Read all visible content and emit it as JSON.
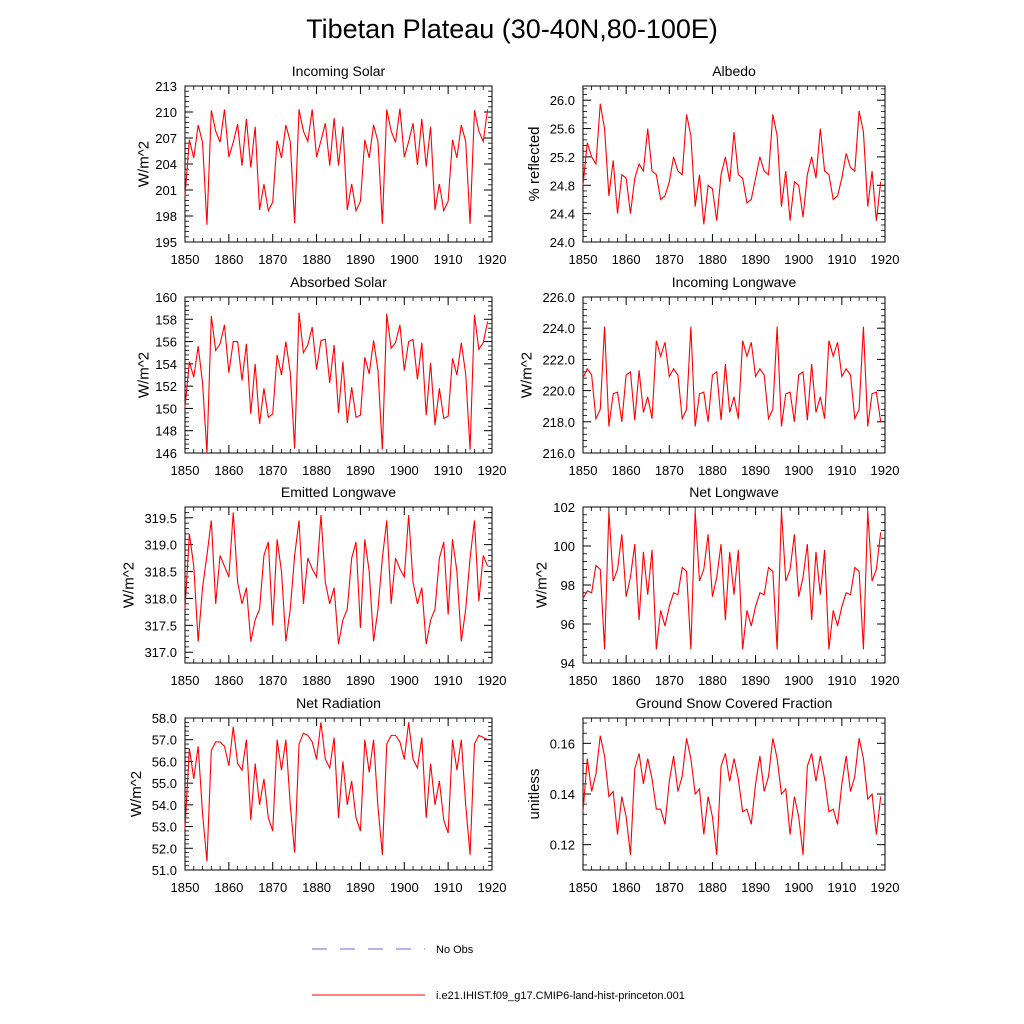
{
  "figure": {
    "title": "Tibetan Plateau (30-40N,80-100E)",
    "legend": [
      {
        "label": "No Obs",
        "color": "#6a6ad0",
        "style": "dashed"
      },
      {
        "label": "i.e21.IHIST.f09_g17.CMIP6-land-hist-princeton.001",
        "color": "#ff0000",
        "style": "solid"
      }
    ]
  },
  "chart_data": [
    {
      "type": "line",
      "title": "Incoming Solar",
      "ylabel": "W/m^2",
      "xlim": [
        1850,
        1920
      ],
      "ylim": [
        195,
        213
      ],
      "xticks": [
        "1850",
        "1860",
        "1870",
        "1880",
        "1890",
        "1900",
        "1910",
        "1920"
      ],
      "yticks": [
        "195",
        "198",
        "201",
        "204",
        "207",
        "210",
        "213"
      ],
      "color": "#ff0000",
      "x_start": 1850,
      "values": [
        200.3,
        206.8,
        204.7,
        208.5,
        206.5,
        197.0,
        210.2,
        207.8,
        206.5,
        210.3,
        204.8,
        206.5,
        208.6,
        203.8,
        209.2,
        203.6,
        208.3,
        198.7,
        201.7,
        198.6,
        199.6,
        206.7,
        204.7,
        208.5,
        206.6,
        197.2,
        210.3,
        207.8,
        206.6,
        210.3,
        204.8,
        206.7,
        208.7,
        203.8,
        209.3,
        203.8,
        208.3,
        198.7,
        201.7,
        198.6,
        199.7,
        206.8,
        204.7,
        208.5,
        206.6,
        197.1,
        210.3,
        207.8,
        206.5,
        210.4,
        204.8,
        206.6,
        208.7,
        203.9,
        209.2,
        203.7,
        208.3,
        198.7,
        201.7,
        198.6,
        199.7,
        206.8,
        204.7,
        208.5,
        206.6,
        197.1,
        210.2,
        207.8,
        206.6,
        210.3
      ]
    },
    {
      "type": "line",
      "title": "Albedo",
      "ylabel": "% reflected",
      "xlim": [
        1850,
        1920
      ],
      "ylim": [
        24.0,
        26.2
      ],
      "xticks": [
        "1850",
        "1860",
        "1870",
        "1880",
        "1890",
        "1900",
        "1910",
        "1920"
      ],
      "yticks": [
        "24.0",
        "24.4",
        "24.8",
        "25.2",
        "25.6",
        "26.0"
      ],
      "color": "#ff0000",
      "x_start": 1850,
      "values": [
        24.8,
        25.4,
        25.2,
        25.1,
        25.95,
        25.6,
        24.65,
        25.15,
        24.4,
        24.95,
        24.9,
        24.4,
        24.9,
        25.1,
        25.0,
        25.6,
        25.0,
        24.95,
        24.6,
        24.65,
        24.85,
        25.2,
        25.0,
        24.95,
        25.8,
        25.5,
        24.5,
        24.95,
        24.25,
        24.8,
        24.75,
        24.3,
        24.95,
        25.2,
        24.85,
        25.55,
        24.95,
        24.9,
        24.55,
        24.6,
        24.9,
        25.2,
        25.0,
        24.95,
        25.8,
        25.5,
        24.5,
        25.0,
        24.3,
        24.85,
        24.8,
        24.35,
        24.95,
        25.2,
        24.9,
        25.6,
        25.0,
        24.95,
        24.6,
        24.65,
        24.9,
        25.25,
        25.05,
        25.0,
        25.85,
        25.55,
        24.5,
        25.0,
        24.3,
        24.85
      ]
    },
    {
      "type": "line",
      "title": "Absorbed Solar",
      "ylabel": "W/m^2",
      "xlim": [
        1850,
        1920
      ],
      "ylim": [
        146,
        160
      ],
      "xticks": [
        "1850",
        "1860",
        "1870",
        "1880",
        "1890",
        "1900",
        "1910",
        "1920"
      ],
      "yticks": [
        "146",
        "148",
        "150",
        "152",
        "154",
        "156",
        "158",
        "160"
      ],
      "color": "#ff0000",
      "x_start": 1850,
      "values": [
        150.1,
        154.2,
        152.8,
        155.6,
        152.3,
        146.0,
        158.3,
        155.2,
        155.8,
        157.5,
        153.2,
        156.0,
        156.0,
        152.5,
        155.8,
        149.5,
        154.0,
        148.6,
        151.8,
        149.2,
        149.5,
        154.8,
        153.0,
        156.0,
        153.2,
        146.4,
        158.6,
        155.0,
        155.7,
        157.3,
        153.5,
        156.1,
        156.2,
        152.3,
        155.7,
        149.6,
        154.2,
        148.7,
        151.9,
        149.2,
        149.4,
        154.6,
        153.1,
        156.1,
        153.4,
        146.3,
        158.5,
        155.4,
        155.9,
        157.5,
        153.4,
        156.0,
        156.2,
        152.6,
        155.9,
        149.4,
        154.1,
        148.5,
        151.8,
        149.1,
        149.3,
        154.5,
        153.0,
        155.9,
        153.1,
        146.3,
        158.4,
        155.3,
        155.9,
        157.8
      ]
    },
    {
      "type": "line",
      "title": "Incoming Longwave",
      "ylabel": "W/m^2",
      "xlim": [
        1850,
        1920
      ],
      "ylim": [
        216.0,
        226.0
      ],
      "xticks": [
        "1850",
        "1860",
        "1870",
        "1880",
        "1890",
        "1900",
        "1910",
        "1920"
      ],
      "yticks": [
        "216.0",
        "218.0",
        "220.0",
        "222.0",
        "224.0",
        "226.0"
      ],
      "color": "#ff0000",
      "x_start": 1850,
      "values": [
        220.8,
        221.4,
        221.0,
        218.2,
        218.8,
        224.1,
        217.7,
        219.8,
        219.9,
        218.0,
        221.0,
        221.2,
        218.1,
        221.3,
        218.6,
        219.6,
        218.2,
        223.2,
        222.2,
        223.1,
        220.9,
        221.4,
        221.0,
        218.2,
        218.8,
        224.1,
        217.7,
        219.8,
        219.9,
        218.0,
        221.0,
        221.2,
        218.1,
        221.7,
        218.6,
        219.6,
        218.2,
        223.2,
        222.2,
        223.1,
        220.9,
        221.4,
        221.0,
        218.2,
        218.8,
        224.1,
        217.7,
        219.8,
        219.9,
        218.0,
        221.0,
        221.2,
        218.1,
        221.7,
        218.6,
        219.6,
        218.2,
        223.2,
        222.2,
        223.1,
        220.9,
        221.4,
        221.0,
        218.2,
        218.8,
        224.1,
        217.7,
        219.8,
        219.9,
        218.0
      ]
    },
    {
      "type": "line",
      "title": "Emitted Longwave",
      "ylabel": "W/m^2",
      "xlim": [
        1850,
        1920
      ],
      "ylim": [
        316.8,
        319.7
      ],
      "xticks": [
        "1850",
        "1860",
        "1870",
        "1880",
        "1890",
        "1900",
        "1910",
        "1920"
      ],
      "yticks": [
        "317.0",
        "317.5",
        "318.0",
        "318.5",
        "319.0",
        "319.5"
      ],
      "color": "#ff0000",
      "x_start": 1850,
      "values": [
        317.8,
        319.2,
        318.6,
        317.2,
        318.2,
        318.8,
        319.45,
        317.9,
        318.8,
        318.6,
        318.4,
        319.6,
        318.3,
        317.9,
        318.2,
        317.2,
        317.6,
        317.8,
        318.8,
        319.05,
        317.5,
        319.1,
        318.5,
        317.2,
        317.8,
        318.8,
        319.45,
        317.9,
        318.75,
        318.55,
        318.4,
        319.55,
        318.3,
        317.9,
        318.2,
        317.15,
        317.6,
        317.8,
        318.75,
        319.05,
        317.45,
        319.1,
        318.5,
        317.2,
        317.8,
        318.75,
        319.45,
        317.9,
        318.75,
        318.55,
        318.4,
        319.55,
        318.3,
        317.9,
        318.2,
        317.15,
        317.6,
        317.8,
        318.75,
        319.05,
        317.7,
        319.1,
        318.5,
        317.2,
        317.8,
        318.75,
        319.45,
        317.95,
        318.8,
        318.6
      ]
    },
    {
      "type": "line",
      "title": "Net Longwave",
      "ylabel": "W/m^2",
      "xlim": [
        1850,
        1920
      ],
      "ylim": [
        94,
        102
      ],
      "xticks": [
        "1850",
        "1860",
        "1870",
        "1880",
        "1890",
        "1900",
        "1910",
        "1920"
      ],
      "yticks": [
        "94",
        "96",
        "98",
        "100",
        "102"
      ],
      "color": "#ff0000",
      "x_start": 1850,
      "values": [
        97.3,
        97.7,
        97.6,
        99.0,
        98.8,
        94.7,
        101.8,
        98.2,
        98.8,
        100.6,
        97.4,
        98.4,
        100.1,
        96.2,
        99.7,
        97.5,
        99.8,
        94.7,
        96.7,
        95.9,
        96.9,
        97.6,
        97.5,
        98.9,
        98.7,
        94.7,
        101.8,
        98.2,
        98.8,
        100.6,
        97.4,
        98.4,
        100.1,
        96.2,
        99.7,
        97.5,
        99.8,
        94.7,
        96.7,
        95.9,
        96.9,
        97.6,
        97.5,
        98.9,
        98.7,
        94.7,
        101.8,
        98.2,
        98.8,
        100.6,
        97.4,
        98.4,
        100.1,
        96.2,
        99.7,
        97.5,
        99.8,
        94.7,
        96.7,
        95.9,
        96.9,
        97.6,
        97.5,
        98.9,
        98.7,
        94.7,
        101.8,
        98.2,
        98.8,
        100.7
      ]
    },
    {
      "type": "line",
      "title": "Net Radiation",
      "ylabel": "W/m^2",
      "xlim": [
        1850,
        1920
      ],
      "ylim": [
        51.0,
        58.0
      ],
      "xticks": [
        "1850",
        "1860",
        "1870",
        "1880",
        "1890",
        "1900",
        "1910",
        "1920"
      ],
      "yticks": [
        "51.0",
        "52.0",
        "53.0",
        "54.0",
        "55.0",
        "56.0",
        "57.0",
        "58.0"
      ],
      "color": "#ff0000",
      "x_start": 1850,
      "values": [
        52.9,
        56.6,
        55.2,
        56.7,
        53.6,
        51.4,
        56.5,
        56.9,
        56.9,
        56.7,
        55.8,
        57.6,
        55.9,
        55.6,
        57.0,
        53.3,
        55.9,
        54.0,
        55.2,
        53.4,
        52.8,
        57.0,
        55.6,
        57.0,
        54.0,
        51.8,
        56.8,
        57.3,
        57.2,
        56.9,
        56.1,
        57.8,
        56.1,
        55.7,
        57.1,
        53.4,
        56.0,
        54.0,
        55.1,
        53.4,
        52.8,
        57.0,
        55.5,
        57.0,
        53.9,
        51.7,
        56.8,
        57.2,
        57.2,
        56.9,
        56.1,
        57.8,
        56.1,
        55.7,
        57.1,
        53.4,
        55.9,
        54.0,
        55.1,
        53.3,
        52.7,
        57.0,
        55.6,
        57.0,
        54.0,
        51.7,
        56.8,
        57.2,
        57.1,
        57.0
      ]
    },
    {
      "type": "line",
      "title": "Ground Snow Covered Fraction",
      "ylabel": "unitless",
      "xlim": [
        1850,
        1920
      ],
      "ylim": [
        0.11,
        0.17
      ],
      "xticks": [
        "1850",
        "1860",
        "1870",
        "1880",
        "1890",
        "1900",
        "1910",
        "1920"
      ],
      "yticks": [
        "0.12",
        "0.14",
        "0.16"
      ],
      "color": "#ff0000",
      "x_start": 1850,
      "values": [
        0.133,
        0.154,
        0.141,
        0.148,
        0.163,
        0.155,
        0.139,
        0.141,
        0.124,
        0.139,
        0.131,
        0.116,
        0.15,
        0.156,
        0.144,
        0.154,
        0.146,
        0.134,
        0.134,
        0.128,
        0.145,
        0.155,
        0.141,
        0.147,
        0.162,
        0.154,
        0.14,
        0.142,
        0.124,
        0.139,
        0.131,
        0.116,
        0.151,
        0.156,
        0.145,
        0.154,
        0.146,
        0.133,
        0.134,
        0.128,
        0.144,
        0.155,
        0.141,
        0.147,
        0.162,
        0.154,
        0.14,
        0.142,
        0.124,
        0.139,
        0.131,
        0.116,
        0.151,
        0.156,
        0.145,
        0.155,
        0.146,
        0.133,
        0.134,
        0.128,
        0.144,
        0.155,
        0.141,
        0.147,
        0.162,
        0.154,
        0.138,
        0.14,
        0.124,
        0.139
      ]
    }
  ]
}
